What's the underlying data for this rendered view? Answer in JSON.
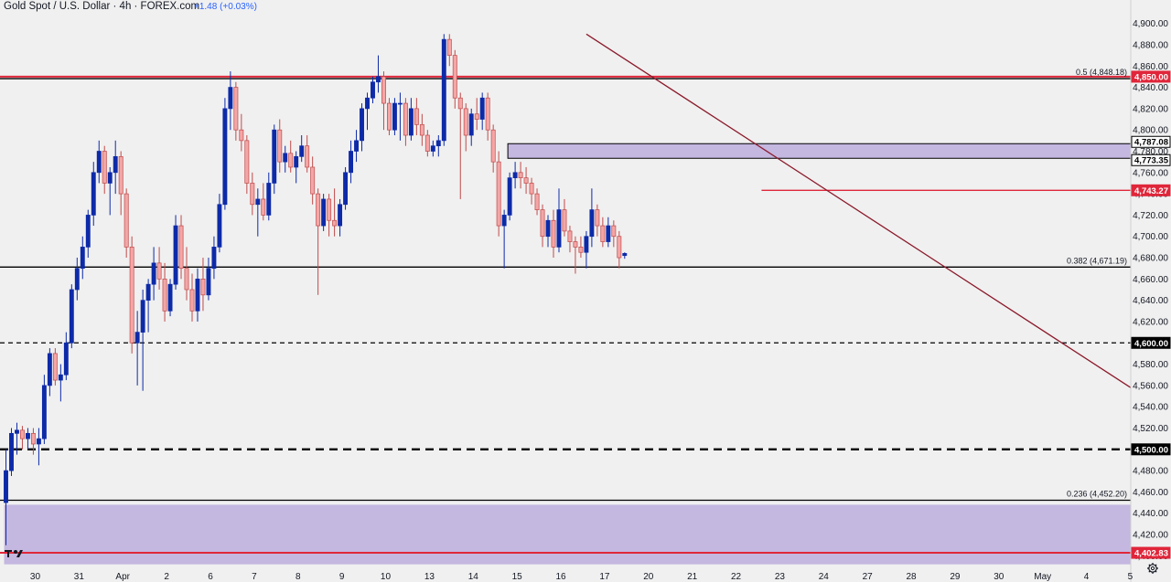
{
  "header": {
    "symbol_label": "Gold Spot / U.S. Dollar · 4h · FOREX.com",
    "change_label": "+1.48 (+0.03%)"
  },
  "colors": {
    "background": "#f0f0f0",
    "bull_candle": "#0d2aa8",
    "bear_candle": "#f4a6a6",
    "bear_outline": "#c14a4a",
    "resistance_red": "#e0263a",
    "zone_fill": "#c4b7e0",
    "trendline": "#8b1a2b",
    "black": "#000000"
  },
  "icons": {
    "settings": "gear-icon",
    "logo": "tradingview-logo-icon"
  },
  "chart_data": {
    "type": "candlestick",
    "title": "Gold Spot / U.S. Dollar · 4h · FOREX.com",
    "timeframe": "4h",
    "ylim": [
      4390,
      4910
    ],
    "y_ticks": [
      4400,
      4420,
      4440,
      4460,
      4480,
      4500,
      4520,
      4540,
      4560,
      4580,
      4600,
      4620,
      4640,
      4660,
      4680,
      4700,
      4720,
      4740,
      4760,
      4780,
      4800,
      4820,
      4840,
      4860,
      4880,
      4900
    ],
    "x_labels": [
      {
        "bar": 3,
        "label": "30"
      },
      {
        "bar": 11,
        "label": "31"
      },
      {
        "bar": 19,
        "label": "Apr"
      },
      {
        "bar": 27,
        "label": "2"
      },
      {
        "bar": 35,
        "label": "6"
      },
      {
        "bar": 43,
        "label": "7"
      },
      {
        "bar": 51,
        "label": "8"
      },
      {
        "bar": 59,
        "label": "9"
      },
      {
        "bar": 67,
        "label": "10"
      },
      {
        "bar": 75,
        "label": "13"
      },
      {
        "bar": 83,
        "label": "14"
      },
      {
        "bar": 91,
        "label": "15"
      },
      {
        "bar": 99,
        "label": "16"
      },
      {
        "bar": 107,
        "label": "17"
      },
      {
        "bar": 115,
        "label": "20"
      },
      {
        "bar": 123,
        "label": "21"
      },
      {
        "bar": 131,
        "label": "22"
      },
      {
        "bar": 139,
        "label": "23"
      },
      {
        "bar": 147,
        "label": "24"
      },
      {
        "bar": 155,
        "label": "27"
      },
      {
        "bar": 163,
        "label": "28"
      },
      {
        "bar": 171,
        "label": "29"
      },
      {
        "bar": 179,
        "label": "30"
      },
      {
        "bar": 187,
        "label": "May"
      },
      {
        "bar": 195,
        "label": "4"
      },
      {
        "bar": 203,
        "label": "5"
      }
    ],
    "candles": [
      [
        4450,
        4500,
        4410,
        4480
      ],
      [
        4480,
        4520,
        4475,
        4515
      ],
      [
        4515,
        4525,
        4495,
        4518
      ],
      [
        4518,
        4522,
        4500,
        4510
      ],
      [
        4510,
        4520,
        4500,
        4515
      ],
      [
        4515,
        4520,
        4495,
        4505
      ],
      [
        4505,
        4520,
        4485,
        4510
      ],
      [
        4510,
        4570,
        4505,
        4560
      ],
      [
        4560,
        4595,
        4550,
        4590
      ],
      [
        4590,
        4595,
        4560,
        4565
      ],
      [
        4565,
        4580,
        4545,
        4570
      ],
      [
        4570,
        4610,
        4565,
        4600
      ],
      [
        4600,
        4655,
        4595,
        4650
      ],
      [
        4650,
        4680,
        4640,
        4670
      ],
      [
        4670,
        4700,
        4660,
        4690
      ],
      [
        4690,
        4725,
        4680,
        4720
      ],
      [
        4720,
        4770,
        4710,
        4760
      ],
      [
        4760,
        4790,
        4750,
        4780
      ],
      [
        4780,
        4785,
        4740,
        4750
      ],
      [
        4750,
        4765,
        4720,
        4760
      ],
      [
        4760,
        4790,
        4740,
        4775
      ],
      [
        4775,
        4780,
        4720,
        4740
      ],
      [
        4740,
        4745,
        4680,
        4690
      ],
      [
        4690,
        4700,
        4590,
        4600
      ],
      [
        4600,
        4630,
        4560,
        4610
      ],
      [
        4610,
        4650,
        4555,
        4640
      ],
      [
        4640,
        4660,
        4610,
        4655
      ],
      [
        4655,
        4690,
        4640,
        4675
      ],
      [
        4675,
        4690,
        4650,
        4660
      ],
      [
        4660,
        4675,
        4620,
        4630
      ],
      [
        4630,
        4660,
        4625,
        4655
      ],
      [
        4655,
        4720,
        4650,
        4710
      ],
      [
        4710,
        4720,
        4660,
        4670
      ],
      [
        4670,
        4690,
        4640,
        4650
      ],
      [
        4650,
        4665,
        4620,
        4630
      ],
      [
        4630,
        4670,
        4620,
        4660
      ],
      [
        4660,
        4680,
        4630,
        4645
      ],
      [
        4645,
        4680,
        4640,
        4670
      ],
      [
        4670,
        4700,
        4660,
        4690
      ],
      [
        4690,
        4740,
        4685,
        4730
      ],
      [
        4730,
        4830,
        4725,
        4820
      ],
      [
        4820,
        4855,
        4800,
        4840
      ],
      [
        4840,
        4845,
        4790,
        4800
      ],
      [
        4800,
        4815,
        4780,
        4790
      ],
      [
        4790,
        4795,
        4740,
        4750
      ],
      [
        4750,
        4760,
        4720,
        4730
      ],
      [
        4730,
        4745,
        4700,
        4735
      ],
      [
        4735,
        4750,
        4715,
        4720
      ],
      [
        4720,
        4760,
        4715,
        4750
      ],
      [
        4750,
        4805,
        4740,
        4800
      ],
      [
        4800,
        4810,
        4760,
        4770
      ],
      [
        4770,
        4785,
        4760,
        4778
      ],
      [
        4778,
        4790,
        4760,
        4765
      ],
      [
        4765,
        4780,
        4750,
        4775
      ],
      [
        4775,
        4795,
        4770,
        4785
      ],
      [
        4785,
        4795,
        4760,
        4765
      ],
      [
        4765,
        4775,
        4730,
        4740
      ],
      [
        4740,
        4745,
        4645,
        4710
      ],
      [
        4710,
        4740,
        4705,
        4735
      ],
      [
        4735,
        4740,
        4700,
        4715
      ],
      [
        4715,
        4745,
        4700,
        4710
      ],
      [
        4710,
        4735,
        4700,
        4730
      ],
      [
        4730,
        4765,
        4725,
        4760
      ],
      [
        4760,
        4790,
        4750,
        4780
      ],
      [
        4780,
        4800,
        4770,
        4790
      ],
      [
        4790,
        4825,
        4780,
        4820
      ],
      [
        4820,
        4835,
        4800,
        4830
      ],
      [
        4830,
        4850,
        4825,
        4845
      ],
      [
        4845,
        4870,
        4835,
        4850
      ],
      [
        4850,
        4855,
        4800,
        4825
      ],
      [
        4825,
        4830,
        4795,
        4800
      ],
      [
        4800,
        4830,
        4795,
        4825
      ],
      [
        4825,
        4835,
        4790,
        4825
      ],
      [
        4825,
        4830,
        4785,
        4795
      ],
      [
        4795,
        4830,
        4790,
        4820
      ],
      [
        4820,
        4830,
        4795,
        4805
      ],
      [
        4805,
        4815,
        4785,
        4795
      ],
      [
        4795,
        4800,
        4775,
        4780
      ],
      [
        4780,
        4790,
        4775,
        4785
      ],
      [
        4785,
        4795,
        4775,
        4790
      ],
      [
        4790,
        4890,
        4785,
        4885
      ],
      [
        4885,
        4890,
        4860,
        4870
      ],
      [
        4870,
        4875,
        4820,
        4830
      ],
      [
        4830,
        4835,
        4735,
        4820
      ],
      [
        4820,
        4825,
        4780,
        4795
      ],
      [
        4795,
        4820,
        4785,
        4815
      ],
      [
        4815,
        4830,
        4800,
        4810
      ],
      [
        4810,
        4835,
        4800,
        4830
      ],
      [
        4830,
        4835,
        4790,
        4800
      ],
      [
        4800,
        4805,
        4760,
        4770
      ],
      [
        4770,
        4780,
        4700,
        4710
      ],
      [
        4710,
        4725,
        4670,
        4720
      ],
      [
        4720,
        4760,
        4715,
        4755
      ],
      [
        4755,
        4770,
        4745,
        4760
      ],
      [
        4760,
        4770,
        4745,
        4755
      ],
      [
        4755,
        4765,
        4740,
        4750
      ],
      [
        4750,
        4755,
        4730,
        4740
      ],
      [
        4740,
        4745,
        4720,
        4725
      ],
      [
        4725,
        4730,
        4690,
        4700
      ],
      [
        4700,
        4720,
        4690,
        4715
      ],
      [
        4715,
        4725,
        4680,
        4690
      ],
      [
        4690,
        4745,
        4685,
        4725
      ],
      [
        4725,
        4735,
        4700,
        4705
      ],
      [
        4705,
        4710,
        4685,
        4695
      ],
      [
        4695,
        4700,
        4665,
        4690
      ],
      [
        4690,
        4700,
        4680,
        4685
      ],
      [
        4685,
        4705,
        4670,
        4700
      ],
      [
        4700,
        4745,
        4690,
        4725
      ],
      [
        4725,
        4730,
        4700,
        4710
      ],
      [
        4710,
        4718,
        4690,
        4695
      ],
      [
        4695,
        4718,
        4690,
        4710
      ],
      [
        4710,
        4715,
        4690,
        4700
      ],
      [
        4700,
        4705,
        4670,
        4680
      ],
      [
        4682,
        4685,
        4679,
        4684
      ]
    ],
    "horizontal_levels": [
      {
        "price": 4848.18,
        "style": "solid",
        "color": "#000000",
        "label": "0.5 (4,848.18)"
      },
      {
        "price": 4850.0,
        "style": "solid",
        "color": "#e0263a",
        "badge": "4,850.00"
      },
      {
        "price": 4743.27,
        "style": "solid",
        "color": "#e0263a",
        "badge": "4,743.27",
        "from_bar": 138
      },
      {
        "price": 4671.19,
        "style": "solid",
        "color": "#000000",
        "label": "0.382 (4,671.19)"
      },
      {
        "price": 4600.0,
        "style": "dashed",
        "color": "#000000",
        "badge": "4,600.00"
      },
      {
        "price": 4500.0,
        "style": "dashed-thick",
        "color": "#000000",
        "badge": "4,500.00"
      },
      {
        "price": 4452.2,
        "style": "solid",
        "color": "#000000",
        "label": "0.236 (4,452.20)"
      },
      {
        "price": 4402.83,
        "style": "solid",
        "color": "#e0263a",
        "badge": "4,402.83"
      }
    ],
    "zones": [
      {
        "low": 4773.35,
        "high": 4787.08,
        "from_bar": 92,
        "badges": [
          "4,787.08",
          "4,773.35"
        ]
      },
      {
        "low": 4392,
        "high": 4448,
        "from_bar": 0
      }
    ],
    "trendline": {
      "from": {
        "bar": 106,
        "price": 4890
      },
      "to": {
        "bar": 212,
        "price": 4536
      }
    }
  }
}
